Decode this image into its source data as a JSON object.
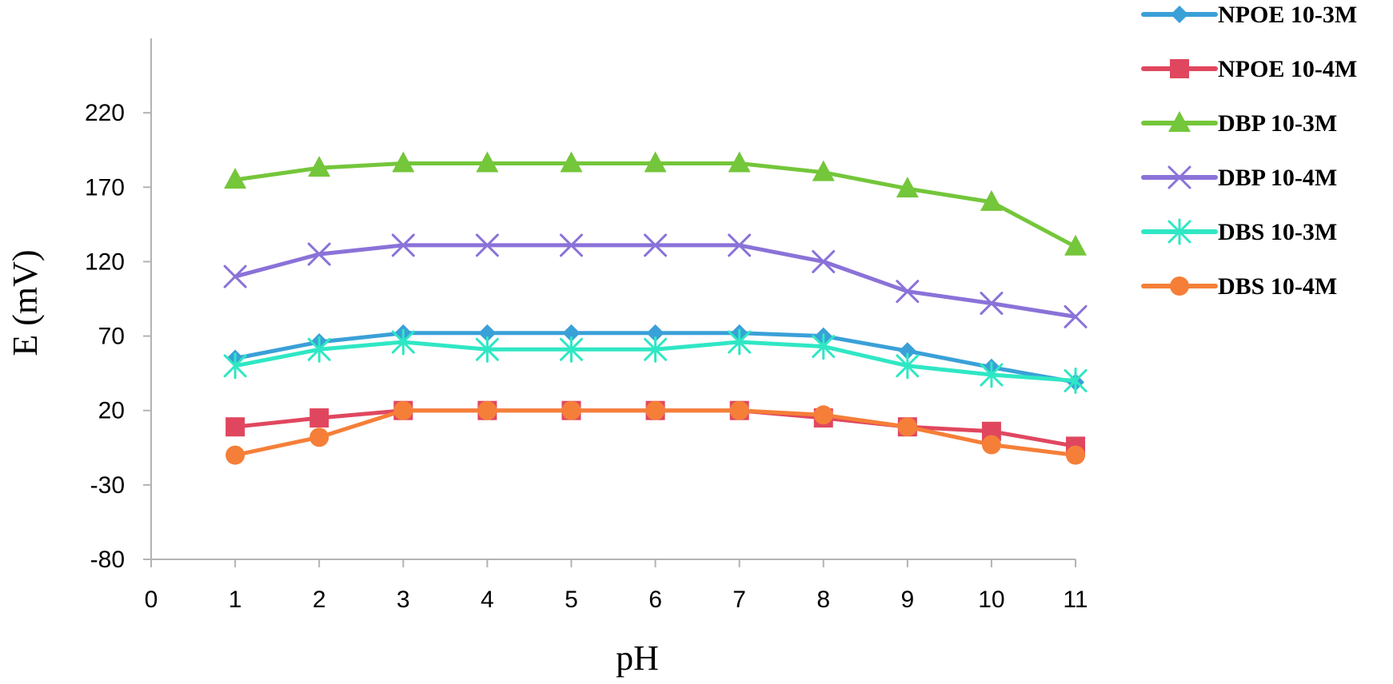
{
  "chart_data": {
    "type": "line",
    "title": "",
    "xlabel": "pH",
    "ylabel": "E (mV)",
    "xlim": [
      0,
      11
    ],
    "ylim": [
      -80,
      270
    ],
    "xticks": [
      0,
      1,
      2,
      3,
      4,
      5,
      6,
      7,
      8,
      9,
      10,
      11
    ],
    "yticks": [
      -80,
      -30,
      20,
      70,
      120,
      170,
      220
    ],
    "grid": false,
    "legend_position": "top-right",
    "x": [
      1,
      2,
      3,
      4,
      5,
      6,
      7,
      8,
      9,
      10,
      11
    ],
    "series": [
      {
        "name": "NPOE 10-3M",
        "color": "#3aa0d8",
        "marker": "diamond",
        "values": [
          55,
          66,
          72,
          72,
          72,
          72,
          72,
          70,
          60,
          49,
          39
        ]
      },
      {
        "name": "NPOE 10-4M",
        "color": "#e0475f",
        "marker": "square",
        "values": [
          9,
          15,
          20,
          20,
          20,
          20,
          20,
          15,
          9,
          6,
          -4
        ]
      },
      {
        "name": "DBP 10-3M",
        "color": "#74c63a",
        "marker": "triangle",
        "values": [
          175,
          183,
          186,
          186,
          186,
          186,
          186,
          180,
          169,
          160,
          130
        ]
      },
      {
        "name": "DBP 10-4M",
        "color": "#8a72d8",
        "marker": "x",
        "values": [
          110,
          125,
          131,
          131,
          131,
          131,
          131,
          120,
          100,
          92,
          83
        ]
      },
      {
        "name": "DBS 10-3M",
        "color": "#2fe7c4",
        "marker": "star",
        "values": [
          50,
          61,
          66,
          61,
          61,
          61,
          66,
          63,
          50,
          44,
          40
        ]
      },
      {
        "name": "DBS 10-4M",
        "color": "#f57f38",
        "marker": "circle",
        "values": [
          -10,
          2,
          20,
          20,
          20,
          20,
          20,
          17,
          9,
          -3,
          -10
        ]
      }
    ]
  }
}
